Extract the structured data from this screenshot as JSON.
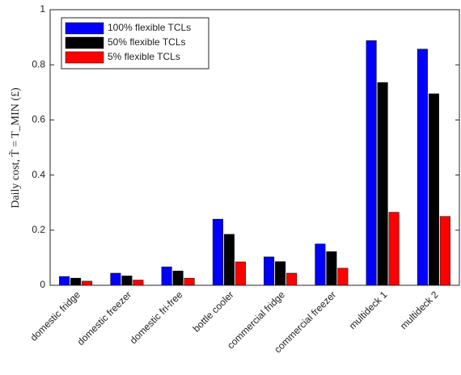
{
  "chart_data": {
    "type": "bar",
    "ylabel": "Daily cost, T̃ = T_MIN (£)",
    "categories": [
      "domestic fridge",
      "domestic freezer",
      "domestic fri-free",
      "bottle cooler",
      "commercial fridge",
      "commercial freezer",
      "multideck 1",
      "multideck 2"
    ],
    "series": [
      {
        "name": "100% flexible TCLs",
        "color": "#0000ff",
        "values": [
          0.032,
          0.044,
          0.067,
          0.24,
          0.103,
          0.15,
          0.888,
          0.857
        ]
      },
      {
        "name": "50% flexible TCLs",
        "color": "#000000",
        "values": [
          0.026,
          0.034,
          0.052,
          0.185,
          0.086,
          0.122,
          0.736,
          0.695
        ]
      },
      {
        "name": "5% flexible TCLs",
        "color": "#ff0000",
        "values": [
          0.015,
          0.019,
          0.026,
          0.085,
          0.044,
          0.062,
          0.265,
          0.25
        ]
      }
    ],
    "ylim": [
      0,
      1
    ],
    "yticks": [
      0,
      0.2,
      0.4,
      0.6,
      0.8,
      1
    ],
    "legend": "upper-left"
  }
}
